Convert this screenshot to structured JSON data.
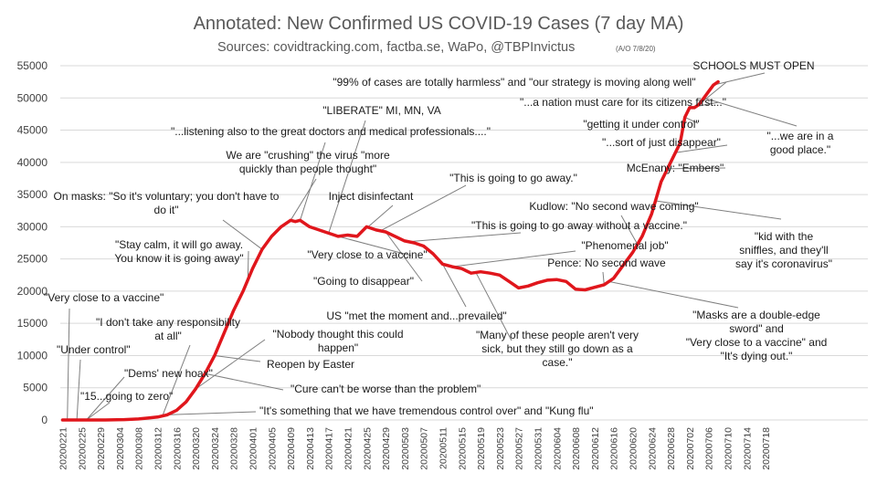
{
  "chart_data": {
    "type": "line",
    "title": "Annotated: New Confirmed US COVID-19 Cases (7 day MA)",
    "subtitle": "Sources: covidtracking.com, factba.se, WaPo, @TBPInvictus",
    "note": "(A/O 7/8/20)",
    "xlabel": "",
    "ylabel": "",
    "ylim": [
      0,
      55000
    ],
    "y_ticks": [
      0,
      5000,
      10000,
      15000,
      20000,
      25000,
      30000,
      35000,
      40000,
      45000,
      50000,
      55000
    ],
    "y_tick_labels": [
      "0",
      "5000",
      "10000",
      "15000",
      "20000",
      "25000",
      "30000",
      "35000",
      "40000",
      "45000",
      "50000",
      "55000"
    ],
    "x_ticks": [
      "20200221",
      "20200225",
      "20200229",
      "20200304",
      "20200308",
      "20200312",
      "20200316",
      "20200320",
      "20200324",
      "20200328",
      "20200401",
      "20200405",
      "20200409",
      "20200413",
      "20200417",
      "20200421",
      "20200425",
      "20200429",
      "20200503",
      "20200507",
      "20200511",
      "20200515",
      "20200519",
      "20200523",
      "20200527",
      "20200531",
      "20200604",
      "20200608",
      "20200612",
      "20200616",
      "20200620",
      "20200624",
      "20200628",
      "20200702",
      "20200706",
      "20200710",
      "20200714",
      "20200718"
    ],
    "grid": true,
    "series": [
      {
        "color": "#e0161c",
        "points": [
          [
            "20200221",
            0
          ],
          [
            "20200301",
            0
          ],
          [
            "20200305",
            50
          ],
          [
            "20200308",
            150
          ],
          [
            "20200310",
            300
          ],
          [
            "20200312",
            450
          ],
          [
            "20200314",
            800
          ],
          [
            "20200316",
            1500
          ],
          [
            "20200318",
            2800
          ],
          [
            "20200320",
            4800
          ],
          [
            "20200322",
            7200
          ],
          [
            "20200324",
            10000
          ],
          [
            "20200326",
            13500
          ],
          [
            "20200328",
            17000
          ],
          [
            "20200330",
            20000
          ],
          [
            "20200401",
            23500
          ],
          [
            "20200403",
            26500
          ],
          [
            "20200405",
            28500
          ],
          [
            "20200407",
            30000
          ],
          [
            "20200409",
            31000
          ],
          [
            "20200410",
            30800
          ],
          [
            "20200411",
            31000
          ],
          [
            "20200413",
            30000
          ],
          [
            "20200415",
            29500
          ],
          [
            "20200417",
            29000
          ],
          [
            "20200419",
            28500
          ],
          [
            "20200421",
            28700
          ],
          [
            "20200423",
            28500
          ],
          [
            "20200425",
            30000
          ],
          [
            "20200427",
            29500
          ],
          [
            "20200429",
            29200
          ],
          [
            "20200501",
            28500
          ],
          [
            "20200503",
            27800
          ],
          [
            "20200505",
            27500
          ],
          [
            "20200507",
            27000
          ],
          [
            "20200509",
            25800
          ],
          [
            "20200511",
            24200
          ],
          [
            "20200513",
            23800
          ],
          [
            "20200515",
            23500
          ],
          [
            "20200517",
            22800
          ],
          [
            "20200519",
            23000
          ],
          [
            "20200521",
            22800
          ],
          [
            "20200523",
            22500
          ],
          [
            "20200525",
            21500
          ],
          [
            "20200527",
            20500
          ],
          [
            "20200529",
            20800
          ],
          [
            "20200531",
            21300
          ],
          [
            "20200602",
            21700
          ],
          [
            "20200604",
            21800
          ],
          [
            "20200606",
            21500
          ],
          [
            "20200608",
            20300
          ],
          [
            "20200610",
            20200
          ],
          [
            "20200612",
            20600
          ],
          [
            "20200614",
            21000
          ],
          [
            "20200616",
            22000
          ],
          [
            "20200618",
            24000
          ],
          [
            "20200620",
            26000
          ],
          [
            "20200622",
            28500
          ],
          [
            "20200624",
            32000
          ],
          [
            "20200626",
            37000
          ],
          [
            "20200628",
            40000
          ],
          [
            "20200630",
            43000
          ],
          [
            "20200701",
            47000
          ],
          [
            "20200702",
            48500
          ],
          [
            "20200703",
            48500
          ],
          [
            "20200704",
            49000
          ],
          [
            "20200705",
            50000
          ],
          [
            "20200706",
            51000
          ],
          [
            "20200707",
            52000
          ],
          [
            "20200708",
            52500
          ]
        ]
      }
    ],
    "annotations": [
      {
        "lines": [
          "\"Very close to a vaccine\""
        ],
        "date": "20200222",
        "value": 0
      },
      {
        "lines": [
          "\"Under control\""
        ],
        "date": "20200224",
        "value": 0
      },
      {
        "lines": [
          "\"Dems' new hoax\""
        ],
        "date": "20200226",
        "value": 0
      },
      {
        "lines": [
          "\"15...going to zero\""
        ],
        "date": "20200226",
        "value": 0
      },
      {
        "lines": [
          "\"I don't take any responsibility",
          "at all\""
        ],
        "date": "20200313",
        "value": 600
      },
      {
        "lines": [
          "\"Nobody thought this could",
          "happen\""
        ],
        "date": "20200320",
        "value": 4800
      },
      {
        "lines": [
          "Reopen by Easter"
        ],
        "date": "20200324",
        "value": 10000
      },
      {
        "lines": [
          "\"Cure can't be worse than the problem\""
        ],
        "date": "20200322",
        "value": 7200
      },
      {
        "lines": [
          "\"It's something that we have tremendous control over\" and \"Kung flu\""
        ],
        "date": "20200314",
        "value": 800
      },
      {
        "lines": [
          "\"Stay calm, it will go away.",
          "You know it is going away\""
        ],
        "date": "20200331",
        "value": 21500
      },
      {
        "lines": [
          "On masks: \"So it's voluntary; you don't have to",
          "do it\""
        ],
        "date": "20200403",
        "value": 26500
      },
      {
        "lines": [
          "We are \"crushing\" the virus \"more",
          "quickly than people thought\""
        ],
        "date": "20200409",
        "value": 31000
      },
      {
        "lines": [
          "\"...listening also to the great doctors and medical professionals....\""
        ],
        "date": "20200411",
        "value": 31000
      },
      {
        "lines": [
          "\"LIBERATE\" MI, MN, VA"
        ],
        "date": "20200417",
        "value": 29000
      },
      {
        "lines": [
          "Inject disinfectant"
        ],
        "date": "20200423",
        "value": 28500
      },
      {
        "lines": [
          "\"Very close to a vaccine\""
        ],
        "date": "20200419",
        "value": 28500
      },
      {
        "lines": [
          "\"Going to disappear\""
        ],
        "date": "20200429",
        "value": 29200
      },
      {
        "lines": [
          "\"This is going to go away.\""
        ],
        "date": "20200428",
        "value": 29400
      },
      {
        "lines": [
          "US \"met the moment and...prevailed\""
        ],
        "date": "20200511",
        "value": 24200
      },
      {
        "lines": [
          "\"Many of these people aren't very",
          "sick, but they still go down as a",
          "case.\""
        ],
        "date": "20200518",
        "value": 22900
      },
      {
        "lines": [
          "\"This is going to go away without a vaccine.\""
        ],
        "date": "20200504",
        "value": 27700
      },
      {
        "lines": [
          "\"Phenomenal job\""
        ],
        "date": "20200513",
        "value": 23800
      },
      {
        "lines": [
          "Kudlow: \"No second wave coming\""
        ],
        "date": "20200621",
        "value": 27300
      },
      {
        "lines": [
          "Pence: No second wave"
        ],
        "date": "20200614",
        "value": 21000
      },
      {
        "lines": [
          "\"Masks are a double-edge",
          "sword\" and",
          "\"Very close to a vaccine\" and",
          "\"It's dying out.\""
        ],
        "date": "20200615",
        "value": 21500
      },
      {
        "lines": [
          "\"kid with the",
          "sniffles, and they'll",
          "say it's coronavirus\""
        ],
        "date": "20200625",
        "value": 34000
      },
      {
        "lines": [
          "McEnany: \"Embers\""
        ],
        "date": "20200627",
        "value": 39000
      },
      {
        "lines": [
          "\"...sort of just disappear\""
        ],
        "date": "20200629",
        "value": 41500
      },
      {
        "lines": [
          "\"getting it under control\""
        ],
        "date": "20200701",
        "value": 47000
      },
      {
        "lines": [
          "\"...a nation must care for its citizens first...\""
        ],
        "date": "20200702",
        "value": 48500
      },
      {
        "lines": [
          "\"99% of cases are totally harmless\" and \"our strategy is moving along well\""
        ],
        "date": "20200704",
        "value": 49000
      },
      {
        "lines": [
          "SCHOOLS MUST OPEN"
        ],
        "date": "20200707",
        "value": 52000
      },
      {
        "lines": [
          "\"...we are in a",
          "good place.\""
        ],
        "date": "20200705",
        "value": 50000
      }
    ]
  }
}
